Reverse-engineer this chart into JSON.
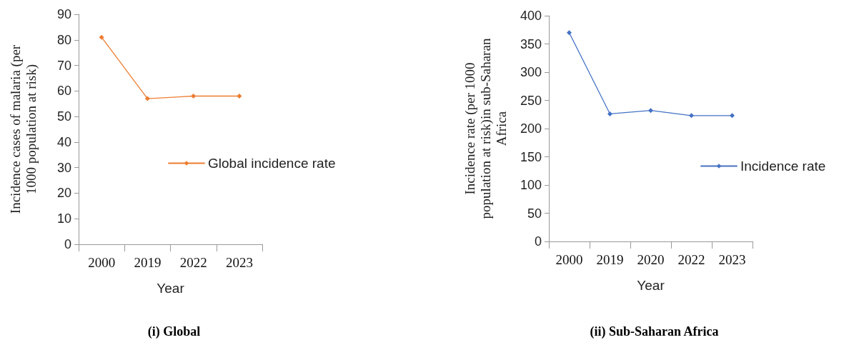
{
  "chart_data": [
    {
      "type": "line",
      "title": "(i) Global",
      "xlabel": "Year",
      "ylabel": "Incidence cases of malaria (per 1000 population at risk)",
      "categories": [
        "2000",
        "2019",
        "2022",
        "2023"
      ],
      "series": [
        {
          "name": "Global incidence rate",
          "color": "#ed7d31",
          "values": [
            81,
            57,
            58,
            58
          ]
        }
      ],
      "ylim": [
        0,
        90
      ],
      "yticks": [
        0,
        10,
        20,
        30,
        40,
        50,
        60,
        70,
        80,
        90
      ],
      "grid": false,
      "legend": "right",
      "marker": "diamond",
      "line_style": "solid"
    },
    {
      "type": "line",
      "title": "(ii) Sub-Saharan Africa",
      "xlabel": "Year",
      "ylabel": "Incidence rate (per 1000 population at risk)in sub-Saharan Africa",
      "categories": [
        "2000",
        "2019",
        "2020",
        "2022",
        "2023"
      ],
      "series": [
        {
          "name": "Incidence rate",
          "color": "#4472c4",
          "values": [
            370,
            226,
            232,
            223,
            223
          ]
        }
      ],
      "ylim": [
        0,
        400
      ],
      "yticks": [
        0,
        50,
        100,
        150,
        200,
        250,
        300,
        350,
        400
      ],
      "grid": false,
      "legend": "right",
      "marker": "diamond",
      "line_style": "solid"
    }
  ]
}
